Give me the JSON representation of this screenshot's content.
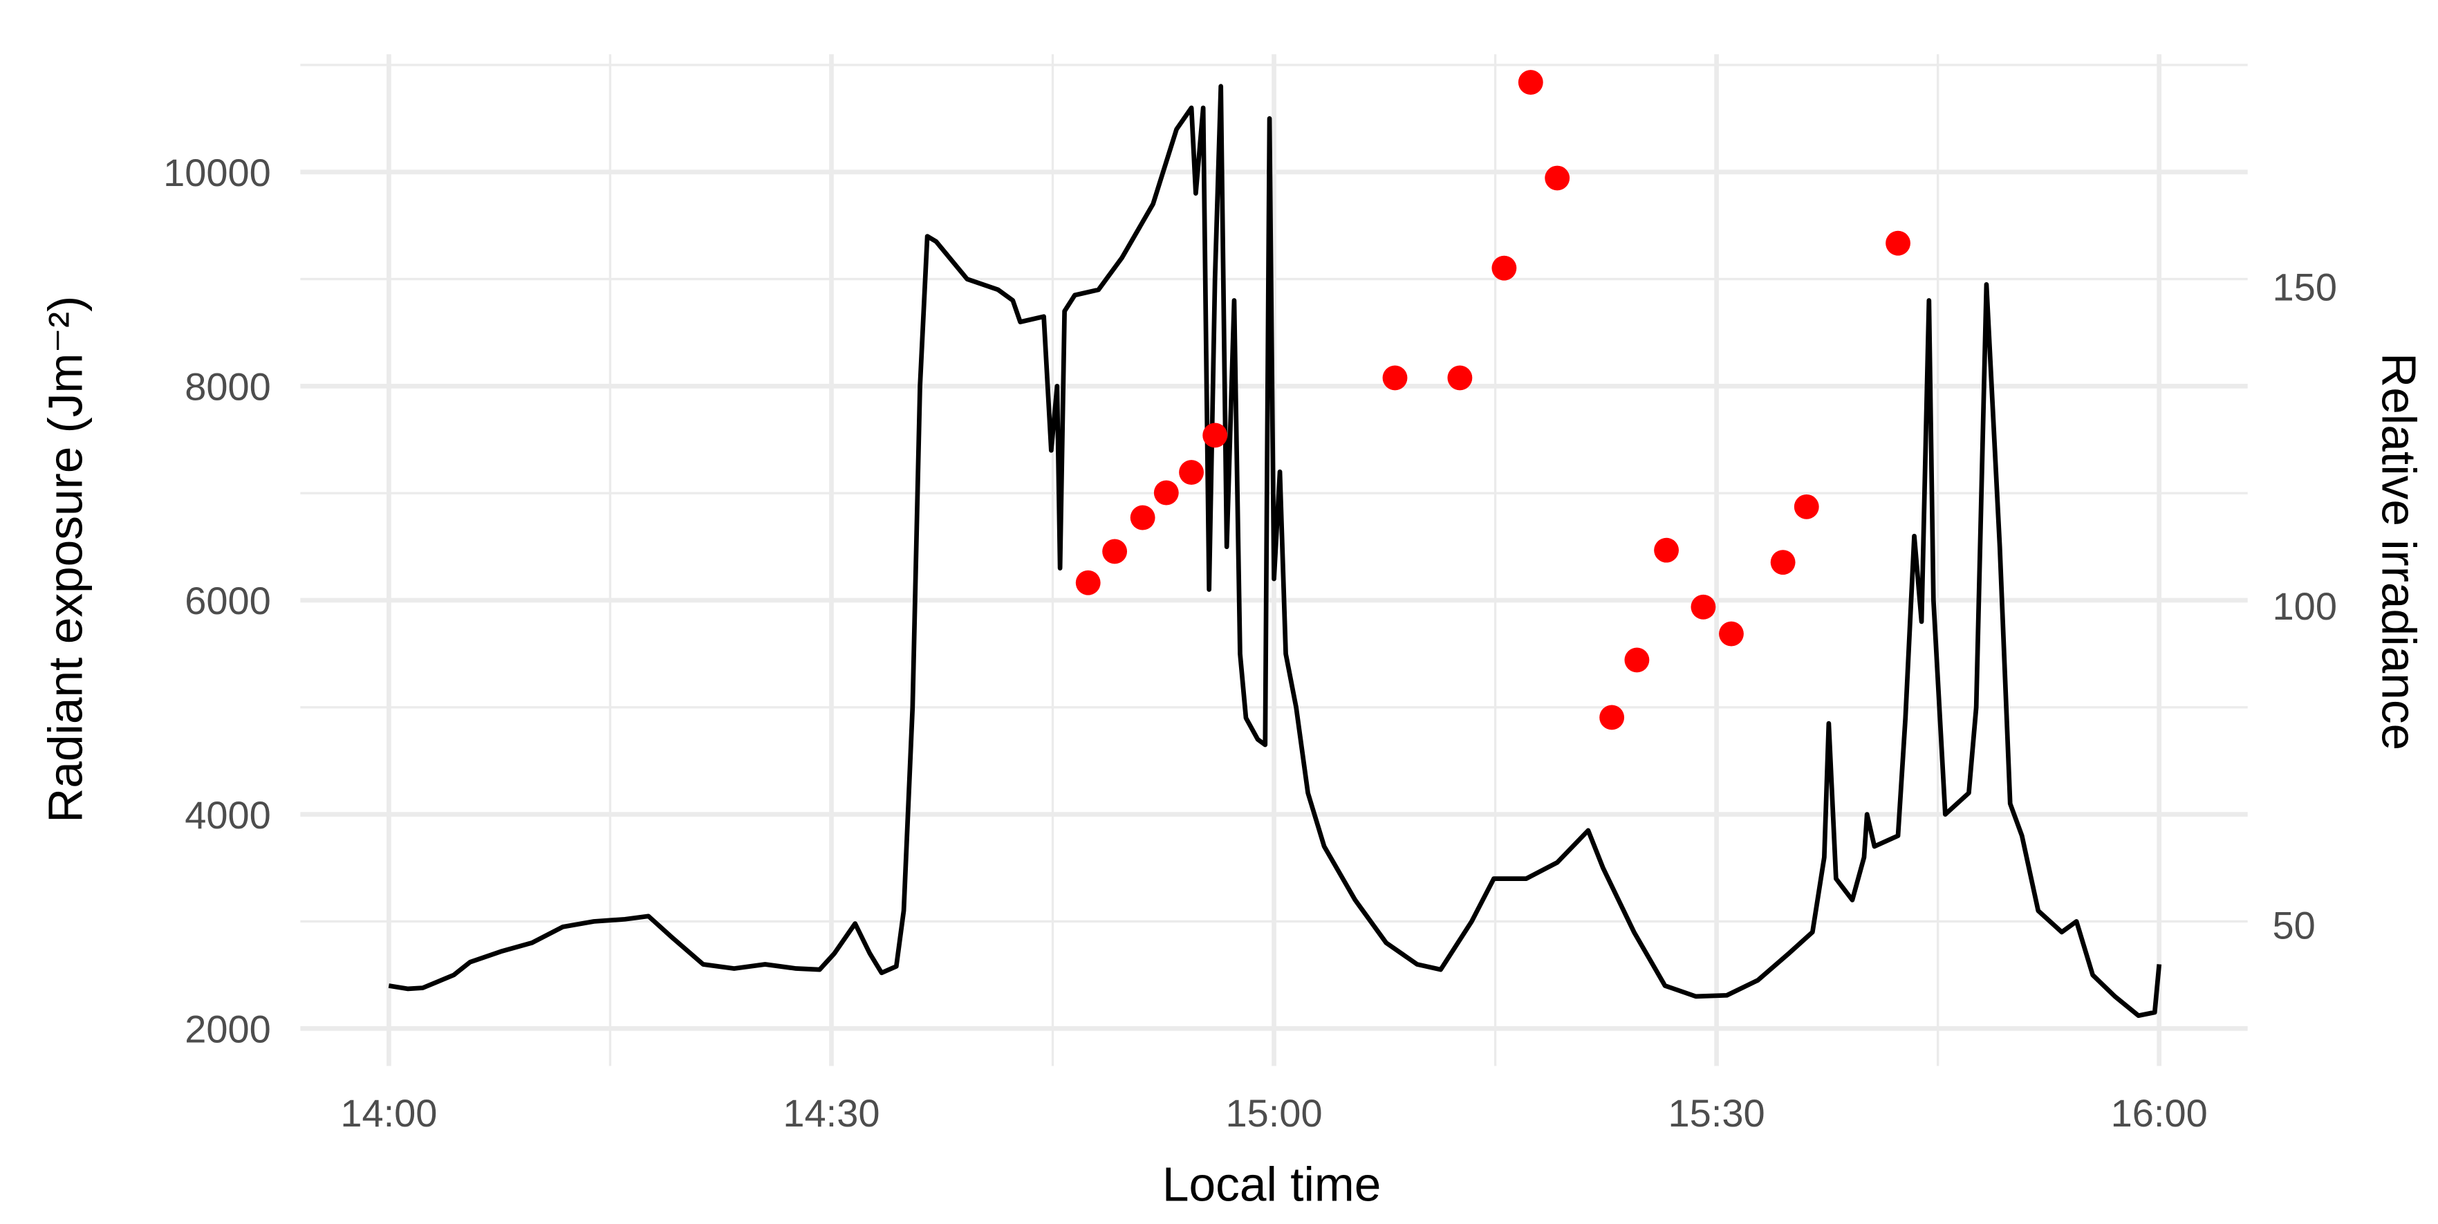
{
  "chart_data": {
    "type": "line",
    "xlabel": "Local time",
    "ylabel": "Radiant exposure (Jm⁻²)",
    "y2label": "Relative irradiance",
    "xlim": [
      -6,
      126
    ],
    "xticks": [
      {
        "value": 0,
        "label": "14:00"
      },
      {
        "value": 30,
        "label": "14:30"
      },
      {
        "value": 60,
        "label": "15:00"
      },
      {
        "value": 90,
        "label": "15:30"
      },
      {
        "value": 120,
        "label": "16:00"
      }
    ],
    "xminor": [
      15,
      45,
      75,
      105
    ],
    "ylim": [
      1650,
      11100
    ],
    "yticks": [
      2000,
      4000,
      6000,
      8000,
      10000
    ],
    "yminor": [
      3000,
      5000,
      7000,
      9000,
      11000
    ],
    "y2lim": [
      27.9,
      186.4
    ],
    "y2ticks": [
      50,
      100,
      150
    ],
    "grid": true,
    "series": [
      {
        "name": "Radiant exposure",
        "type": "line",
        "color": "#000000",
        "x": [
          0,
          1.3,
          2.3,
          4.4,
          5.5,
          7.6,
          9.7,
          11.8,
          13.9,
          16,
          17.6,
          19.2,
          21.3,
          23.4,
          25.5,
          27.6,
          29.2,
          30.2,
          31.6,
          32.6,
          33.4,
          34.4,
          34.9,
          35.5,
          36,
          36.5,
          37.1,
          39.2,
          41.3,
          42.3,
          42.8,
          44.4,
          44.9,
          45.3,
          45.5,
          45.8,
          46.5,
          48.1,
          49.7,
          51.8,
          53.4,
          54.4,
          54.7,
          55.2,
          55.6,
          56,
          56.4,
          56.8,
          57.3,
          57.7,
          58.1,
          58.9,
          59.4,
          59.7,
          60,
          60.4,
          60.8,
          61.5,
          62.3,
          63.4,
          65.5,
          67.6,
          69.7,
          71.3,
          73.4,
          74.9,
          77.1,
          79.2,
          81.3,
          82.3,
          84.4,
          86.5,
          88.6,
          90.7,
          92.8,
          94.9,
          96.5,
          97.3,
          97.6,
          98.1,
          99.2,
          100,
          100.2,
          100.7,
          102.3,
          102.8,
          103.4,
          103.9,
          104.4,
          104.7,
          105.5,
          107.1,
          107.6,
          108.3,
          109.2,
          109.9,
          110.7,
          111.8,
          113.4,
          114.4,
          115.5,
          117,
          118.6,
          119.7,
          120
        ],
        "values": [
          2400,
          2370,
          2380,
          2500,
          2620,
          2720,
          2800,
          2950,
          3000,
          3020,
          3050,
          2850,
          2600,
          2560,
          2600,
          2560,
          2550,
          2700,
          2980,
          2700,
          2520,
          2580,
          3100,
          5000,
          8000,
          9400,
          9350,
          9000,
          8900,
          8800,
          8600,
          8650,
          7400,
          8000,
          6300,
          8700,
          8850,
          8900,
          9200,
          9700,
          10400,
          10600,
          9800,
          10600,
          6100,
          9000,
          10800,
          6500,
          8800,
          5500,
          4900,
          4700,
          4650,
          10500,
          6200,
          7200,
          5500,
          5000,
          4200,
          3700,
          3200,
          2800,
          2600,
          2550,
          3000,
          3400,
          3400,
          3550,
          3850,
          3500,
          2900,
          2400,
          2300,
          2310,
          2450,
          2700,
          2900,
          3600,
          4850,
          3400,
          3200,
          3600,
          4000,
          3700,
          3800,
          4900,
          6600,
          5800,
          8800,
          6000,
          4000,
          4200,
          5000,
          8950,
          6500,
          4100,
          3800,
          3100,
          2900,
          3000,
          2500,
          2300,
          2120,
          2150,
          2600
        ]
      },
      {
        "name": "Relative irradiance",
        "type": "scatter",
        "axis": "y2",
        "color": "#ff0000",
        "x": [
          47.4,
          49.2,
          51.1,
          52.7,
          54.4,
          56,
          68.2,
          72.6,
          75.6,
          77.4,
          79.2,
          82.9,
          84.6,
          86.6,
          89.1,
          91,
          94.5,
          96.1,
          102.3
        ],
        "values": [
          103.6,
          108.5,
          113.8,
          117.7,
          120.9,
          126.7,
          135.7,
          135.7,
          152.9,
          182,
          167,
          82.5,
          91.5,
          108.7,
          99.8,
          95.6,
          106.8,
          115.5,
          156.8
        ]
      }
    ]
  }
}
